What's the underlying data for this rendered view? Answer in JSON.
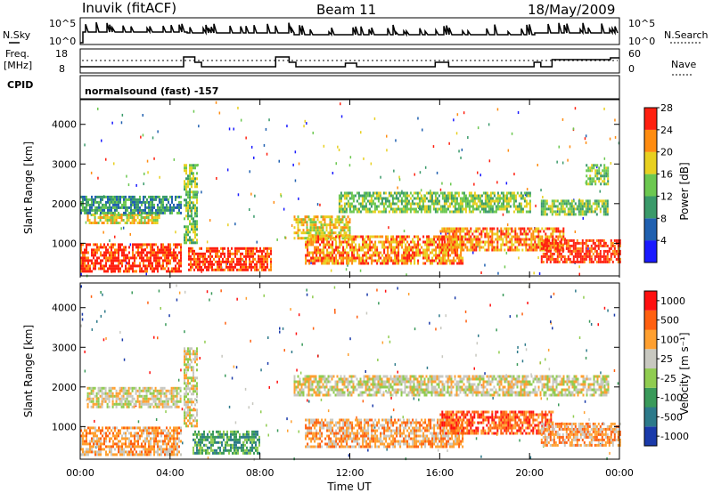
{
  "header": {
    "station": "Inuvik (fitACF)",
    "beam": "Beam 11",
    "date": "18/May/2009"
  },
  "panels": {
    "nsky_label": "N.Sky",
    "nsky_ticks": [
      "10^5",
      "10^0"
    ],
    "nsearch_label": "N.Search",
    "nsearch_ticks": [
      "10^5",
      "10^0"
    ],
    "freq_label": "Freq.",
    "freq_unit": "[MHz]",
    "freq_ticks": [
      "18",
      "8"
    ],
    "nave_label": "Nave",
    "nave_ticks": [
      "60",
      "0"
    ],
    "cpid_label": "CPID",
    "cpid_value": "normalsound (fast) -157"
  },
  "chart_data": [
    {
      "type": "heatmap",
      "name": "power",
      "ylabel": "Slant Range [km]",
      "ylim": [
        200,
        4600
      ],
      "yticks": [
        "1000",
        "2000",
        "3000",
        "4000"
      ],
      "colorbar_label": "Power [dB]",
      "colorbar_ticks": [
        "4",
        "8",
        "12",
        "16",
        "20",
        "24",
        "28"
      ],
      "colors": [
        "#1a1aff",
        "#2060b0",
        "#3a9a6a",
        "#6cc850",
        "#e8d020",
        "#ff8c10",
        "#ff2010"
      ],
      "bands": [
        {
          "t": [
            0.0,
            4.5
          ],
          "r": [
            300,
            1000
          ],
          "level": 6
        },
        {
          "t": [
            0.3,
            3.5
          ],
          "r": [
            1500,
            1750
          ],
          "level": 4
        },
        {
          "t": [
            0.0,
            4.5
          ],
          "r": [
            1750,
            2200
          ],
          "level": 2
        },
        {
          "t": [
            4.8,
            8.5
          ],
          "r": [
            300,
            900
          ],
          "level": 6
        },
        {
          "t": [
            4.6,
            5.2
          ],
          "r": [
            1000,
            3000
          ],
          "level": 3
        },
        {
          "t": [
            9.5,
            12.0
          ],
          "r": [
            1100,
            1700
          ],
          "level": 4
        },
        {
          "t": [
            10.0,
            17.0
          ],
          "r": [
            500,
            1200
          ],
          "level": 5
        },
        {
          "t": [
            11.5,
            20.0
          ],
          "r": [
            1800,
            2300
          ],
          "level": 3
        },
        {
          "t": [
            16.0,
            21.5
          ],
          "r": [
            800,
            1400
          ],
          "level": 5
        },
        {
          "t": [
            20.5,
            24.0
          ],
          "r": [
            500,
            1100
          ],
          "level": 6
        },
        {
          "t": [
            20.5,
            23.5
          ],
          "r": [
            1700,
            2100
          ],
          "level": 3
        },
        {
          "t": [
            22.5,
            23.5
          ],
          "r": [
            2500,
            3000
          ],
          "level": 3
        }
      ]
    },
    {
      "type": "heatmap",
      "name": "velocity",
      "ylabel": "Slant Range [km]",
      "ylim": [
        200,
        4600
      ],
      "yticks": [
        "1000",
        "2000",
        "3000",
        "4000"
      ],
      "colorbar_label": "Velocity [m s⁻¹]",
      "colorbar_ticks": [
        "1000",
        "500",
        "100",
        "25",
        "-25",
        "-100",
        "-500",
        "-1000"
      ],
      "colors": [
        "#1a3aaa",
        "#2d7a8a",
        "#3a9a5a",
        "#90cc50",
        "#c8c8c0",
        "#ffa030",
        "#ff6010",
        "#ff1010"
      ],
      "bands": [
        {
          "t": [
            0.0,
            4.5
          ],
          "r": [
            300,
            1000
          ],
          "level": 5
        },
        {
          "t": [
            0.3,
            4.5
          ],
          "r": [
            1500,
            2000
          ],
          "level": 4
        },
        {
          "t": [
            5.0,
            8.0
          ],
          "r": [
            300,
            900
          ],
          "level": 2
        },
        {
          "t": [
            4.6,
            5.2
          ],
          "r": [
            1000,
            3000
          ],
          "level": 4
        },
        {
          "t": [
            9.5,
            23.5
          ],
          "r": [
            1800,
            2300
          ],
          "level": 4
        },
        {
          "t": [
            10.0,
            17.0
          ],
          "r": [
            500,
            1200
          ],
          "level": 5
        },
        {
          "t": [
            16.0,
            21.0
          ],
          "r": [
            800,
            1400
          ],
          "level": 6
        },
        {
          "t": [
            20.5,
            24.0
          ],
          "r": [
            500,
            1100
          ],
          "level": 5
        }
      ]
    }
  ],
  "x_axis": {
    "label": "Time UT",
    "ticks": [
      "00:00",
      "04:00",
      "08:00",
      "12:00",
      "16:00",
      "20:00",
      "00:00"
    ],
    "range_hours": [
      0,
      24
    ]
  }
}
